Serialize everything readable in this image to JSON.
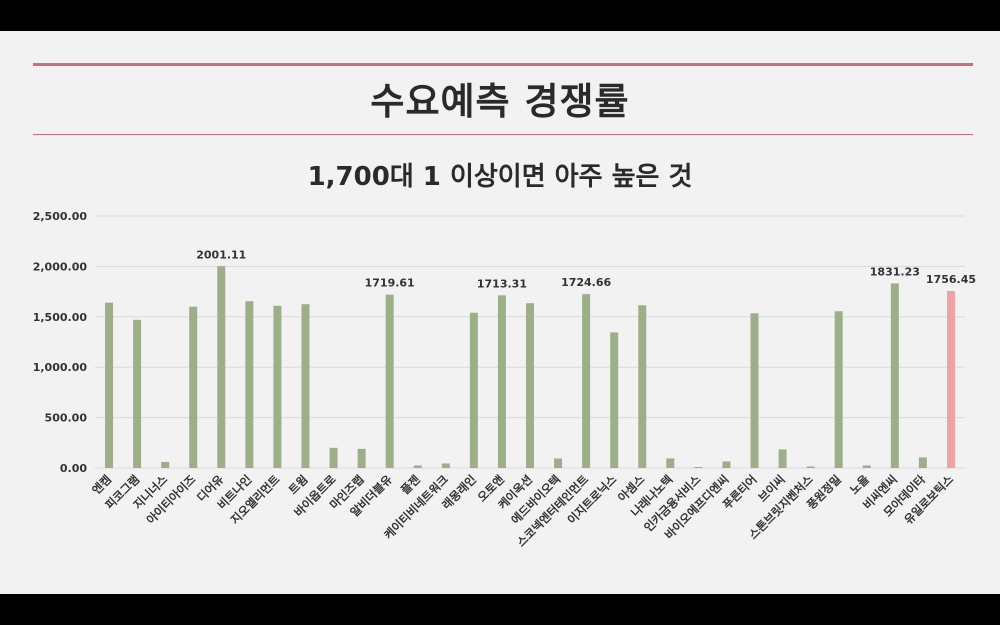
{
  "page": {
    "title": "수요예측 경쟁률",
    "subtitle": "1,700대 1 이상이면 아주 높은 것"
  },
  "colors": {
    "bar": "#9caf88",
    "highlight": "#f0a2a6",
    "grid": "#d9d9d9",
    "rule": "#d2697a",
    "text": "#333333"
  },
  "chart_data": {
    "type": "bar",
    "title": "",
    "xlabel": "",
    "ylabel": "",
    "ylim": [
      0,
      2500
    ],
    "yticks": [
      0,
      500,
      1000,
      1500,
      2000,
      2500
    ],
    "ytick_labels": [
      "0.00",
      "500.00",
      "1,000.00",
      "1,500.00",
      "2,000.00",
      "2,500.00"
    ],
    "grid": true,
    "legend": "none",
    "highlight_index": 30,
    "categories": [
      "엔켐",
      "피코그램",
      "지니너스",
      "아이티아이즈",
      "디어유",
      "비트나인",
      "지오엘리먼트",
      "트윔",
      "바이옵트로",
      "마인즈랩",
      "알비더블유",
      "플젠",
      "케이티비네트워크",
      "래몽래인",
      "오토앤",
      "케이옥션",
      "에드바이오텍",
      "스코넥엔터테인먼트",
      "이지트로닉스",
      "아셈스",
      "나래나노텍",
      "인카금융서비스",
      "바이오에프디엔씨",
      "푸른티어",
      "브이씨",
      "스톤브릿지벤처스",
      "풍원정밀",
      "노을",
      "비씨엔씨",
      "모아데이타",
      "유일로보틱스"
    ],
    "values": [
      1640,
      1470,
      60,
      1600,
      2001.11,
      1655,
      1610,
      1625,
      200,
      190,
      1719.61,
      25,
      45,
      1540,
      1713.31,
      1635,
      95,
      1724.66,
      1345,
      1615,
      95,
      10,
      65,
      1535,
      185,
      15,
      1555,
      25,
      1831.23,
      105,
      1756.45
    ],
    "data_labels": [
      null,
      null,
      null,
      null,
      "2001.11",
      null,
      null,
      null,
      null,
      null,
      "1719.61",
      null,
      null,
      null,
      "1713.31",
      null,
      null,
      "1724.66",
      null,
      null,
      null,
      null,
      null,
      null,
      null,
      null,
      null,
      null,
      "1831.23",
      null,
      "1756.45"
    ]
  }
}
